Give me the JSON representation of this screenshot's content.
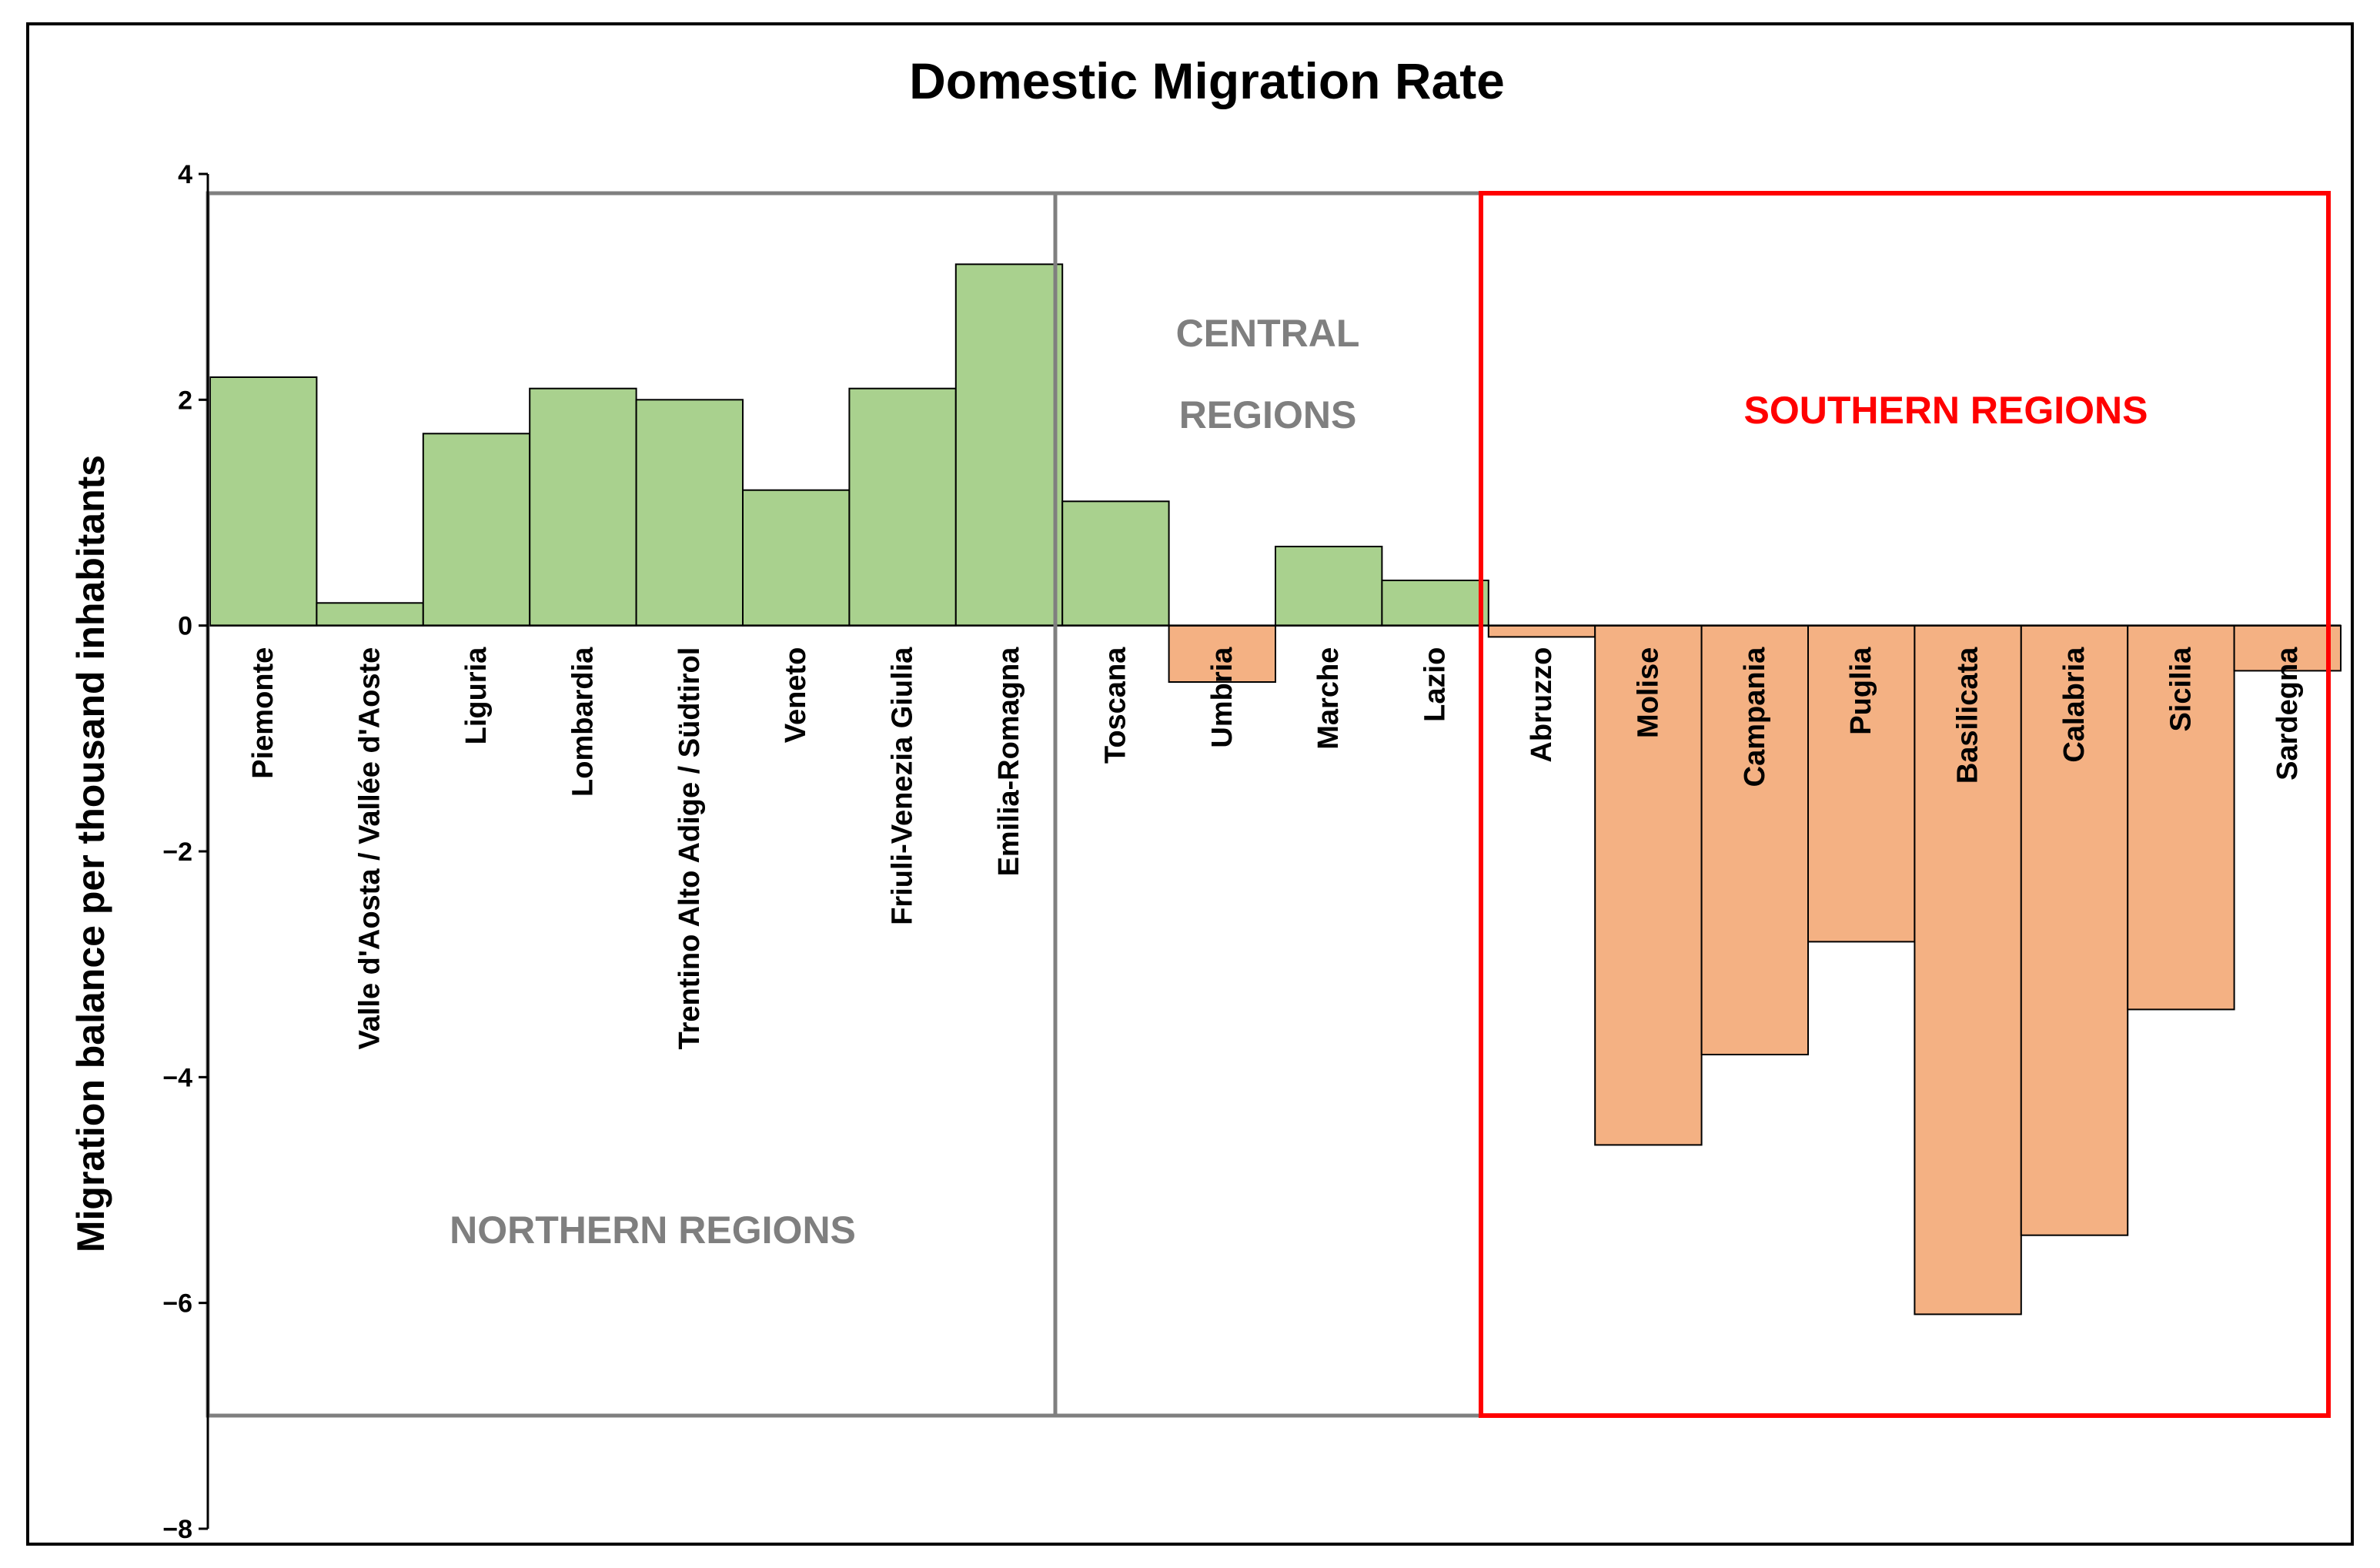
{
  "chart_data": {
    "type": "bar",
    "title": "Domestic Migration Rate",
    "xlabel": "",
    "ylabel": "Migration balance per thousand inhabitants",
    "ylim": [
      -8,
      4
    ],
    "yticks": [
      4,
      2,
      0,
      -2,
      -4,
      -6,
      -8
    ],
    "ytick_labels": [
      "4",
      "2",
      "0",
      "−2",
      "−4",
      "−6",
      "−8"
    ],
    "categories": [
      "Piemonte",
      "Valle d'Aosta / Vallée d'Aoste",
      "Liguria",
      "Lombardia",
      "Trentino Alto Adige / Südtirol",
      "Veneto",
      "Friuli-Venezia Giulia",
      "Emilia-Romagna",
      "Toscana",
      "Umbria",
      "Marche",
      "Lazio",
      "Abruzzo",
      "Molise",
      "Campania",
      "Puglia",
      "Basilicata",
      "Calabria",
      "Sicilia",
      "Sardegna"
    ],
    "values": [
      2.2,
      0.2,
      1.7,
      2.1,
      2.0,
      1.2,
      2.1,
      3.2,
      1.1,
      -0.5,
      0.7,
      0.4,
      -0.1,
      -4.6,
      -3.8,
      -2.8,
      -6.1,
      -5.4,
      -3.4,
      -0.4
    ],
    "positive_color": "#a9d18e",
    "negative_color": "#f4b183",
    "groups": [
      {
        "name": "north",
        "label": "NORTHERN REGIONS",
        "first": 0,
        "last": 7,
        "color": "#7f7f7f"
      },
      {
        "name": "central",
        "label_lines": [
          "CENTRAL",
          "REGIONS"
        ],
        "first": 8,
        "last": 11,
        "color": "#7f7f7f"
      },
      {
        "name": "south",
        "label": "SOUTHERN REGIONS",
        "first": 12,
        "last": 19,
        "color": "#ff0000"
      }
    ]
  }
}
